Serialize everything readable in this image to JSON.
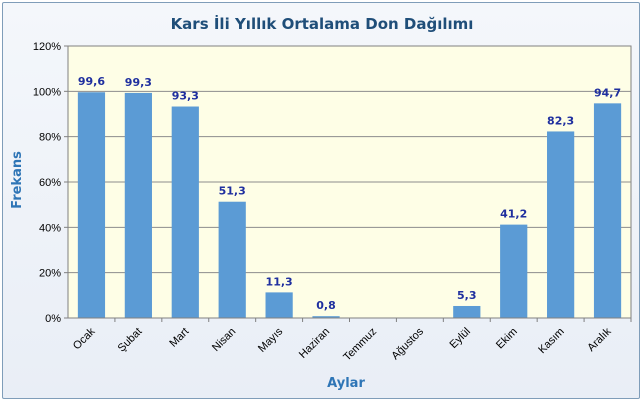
{
  "chart_data": {
    "type": "bar",
    "title": "Kars İli Yıllık Ortalama Don Dağılımı",
    "xlabel": "Aylar",
    "ylabel": "Frekans",
    "ylim": [
      0,
      120
    ],
    "yticks": [
      "0%",
      "20%",
      "40%",
      "60%",
      "80%",
      "100%",
      "120%"
    ],
    "categories": [
      "Ocak",
      "Şubat",
      "Mart",
      "Nisan",
      "Mayıs",
      "Haziran",
      "Temmuz",
      "Ağustos",
      "Eylül",
      "Ekim",
      "Kasım",
      "Aralık"
    ],
    "values": [
      99.6,
      99.3,
      93.3,
      51.3,
      11.3,
      0.8,
      null,
      null,
      5.3,
      41.2,
      82.3,
      94.7
    ],
    "data_labels": [
      "99,6",
      "99,3",
      "93,3",
      "51,3",
      "11,3",
      "0,8",
      "",
      "",
      "5,3",
      "41,2",
      "82,3",
      "94,7"
    ],
    "grid": true,
    "legend": "none",
    "colors": {
      "bar": "#5b9bd5",
      "plot_bg": "#fefee6",
      "title": "#1f4e79",
      "axis_title": "#2e75b6",
      "data_label": "#1f2f9f"
    }
  }
}
